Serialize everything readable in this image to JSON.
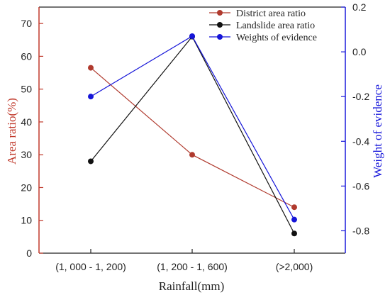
{
  "chart_data": {
    "type": "line",
    "categories": [
      "(1, 000 - 1, 200)",
      "(1, 200 - 1, 600)",
      "(>2,000)"
    ],
    "xlabel": "Rainfall(mm)",
    "ylabel_left": "Area ratio(%)",
    "ylabel_right": "Weight of evidence",
    "ylim_left": [
      0,
      75
    ],
    "ylim_right": [
      -0.9,
      0.2
    ],
    "yticks_left": [
      0,
      10,
      20,
      30,
      40,
      50,
      60,
      70
    ],
    "yticks_right": [
      -0.8,
      -0.6,
      -0.4,
      -0.2,
      0.0,
      0.2
    ],
    "yticks_right_labels": [
      "-0.8",
      "-0.6",
      "-0.4",
      "-0.2",
      "0.0",
      "0.2"
    ],
    "legend_position": "top-right",
    "grid": false,
    "series": [
      {
        "name": "District area ratio",
        "axis": "left",
        "color": "#b03a2e",
        "values": [
          56.5,
          30,
          14
        ]
      },
      {
        "name": "Landslide area ratio",
        "axis": "left",
        "color": "#111111",
        "values": [
          28,
          66,
          6
        ]
      },
      {
        "name": "Weights of evidence",
        "axis": "right",
        "color": "#1515d8",
        "values": [
          -0.2,
          0.07,
          -0.75
        ]
      }
    ],
    "colors": {
      "left_axis": "#c0392b",
      "right_axis": "#1a1adb",
      "frame": "#222222"
    }
  }
}
